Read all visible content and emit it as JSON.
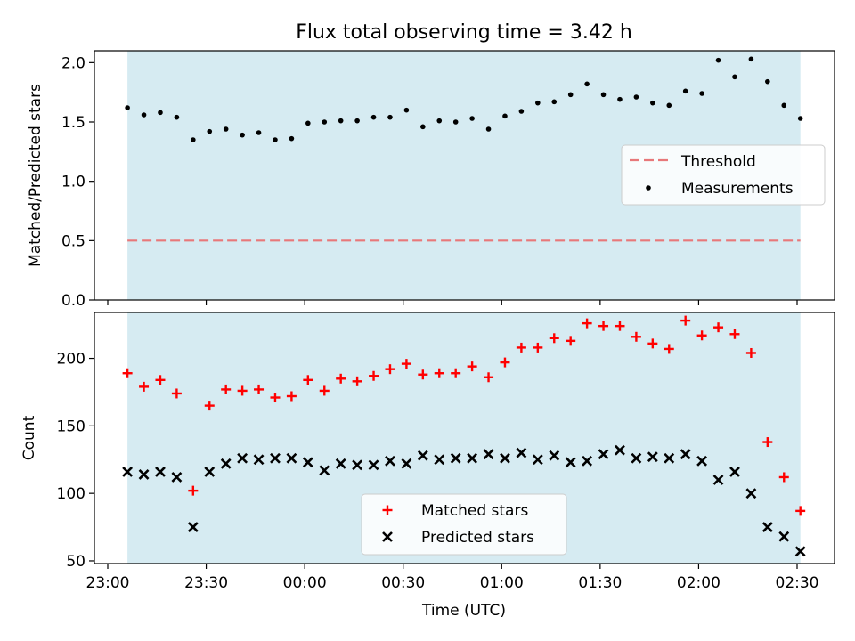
{
  "title": "Flux total observing time = 3.42 h",
  "colors": {
    "shade": "#add8e6",
    "threshold": "#e8787a",
    "matched": "#ff0000",
    "predicted": "#000000",
    "measurement": "#000000"
  },
  "chart_data": [
    {
      "type": "scatter",
      "ylabel": "Matched/Predicted stars",
      "xlim": [
        "23:00",
        "02:30"
      ],
      "ylim": [
        0.0,
        2.1
      ],
      "yticks": [
        "0.0",
        "0.5",
        "1.0",
        "1.5",
        "2.0"
      ],
      "shaded_interval": [
        "23:06",
        "02:31"
      ],
      "threshold": {
        "name": "Threshold",
        "value": 0.5
      },
      "legend": {
        "position": "center-right",
        "entries": [
          "Threshold",
          "Measurements"
        ]
      },
      "series": [
        {
          "name": "Measurements",
          "x": [
            "23:06",
            "23:11",
            "23:16",
            "23:21",
            "23:26",
            "23:31",
            "23:36",
            "23:41",
            "23:46",
            "23:51",
            "23:56",
            "00:01",
            "00:06",
            "00:11",
            "00:16",
            "00:21",
            "00:26",
            "00:31",
            "00:36",
            "00:41",
            "00:46",
            "00:51",
            "00:56",
            "01:01",
            "01:06",
            "01:11",
            "01:16",
            "01:21",
            "01:26",
            "01:31",
            "01:36",
            "01:41",
            "01:46",
            "01:51",
            "01:56",
            "02:01",
            "02:06",
            "02:11",
            "02:16",
            "02:21",
            "02:26",
            "02:31"
          ],
          "values": [
            1.62,
            1.56,
            1.58,
            1.54,
            1.35,
            1.42,
            1.44,
            1.39,
            1.41,
            1.35,
            1.36,
            1.49,
            1.5,
            1.51,
            1.51,
            1.54,
            1.54,
            1.6,
            1.46,
            1.51,
            1.5,
            1.53,
            1.44,
            1.55,
            1.59,
            1.66,
            1.67,
            1.73,
            1.82,
            1.73,
            1.69,
            1.71,
            1.66,
            1.64,
            1.76,
            1.74,
            2.02,
            1.88,
            2.03,
            1.84,
            1.64,
            1.53
          ]
        }
      ]
    },
    {
      "type": "scatter",
      "ylabel": "Count",
      "xlabel": "Time (UTC)",
      "ylim": [
        48,
        234
      ],
      "yticks": [
        "50",
        "100",
        "150",
        "200"
      ],
      "xticks": [
        "23:00",
        "23:30",
        "00:00",
        "00:30",
        "01:00",
        "01:30",
        "02:00",
        "02:30"
      ],
      "legend": {
        "position": "lower-center",
        "entries": [
          "Matched stars",
          "Predicted stars"
        ]
      },
      "series": [
        {
          "name": "Matched stars",
          "marker": "+",
          "x": [
            "23:06",
            "23:11",
            "23:16",
            "23:21",
            "23:26",
            "23:31",
            "23:36",
            "23:41",
            "23:46",
            "23:51",
            "23:56",
            "00:01",
            "00:06",
            "00:11",
            "00:16",
            "00:21",
            "00:26",
            "00:31",
            "00:36",
            "00:41",
            "00:46",
            "00:51",
            "00:56",
            "01:01",
            "01:06",
            "01:11",
            "01:16",
            "01:21",
            "01:26",
            "01:31",
            "01:36",
            "01:41",
            "01:46",
            "01:51",
            "01:56",
            "02:01",
            "02:06",
            "02:11",
            "02:16",
            "02:21",
            "02:26",
            "02:31"
          ],
          "values": [
            189,
            179,
            184,
            174,
            102,
            165,
            177,
            176,
            177,
            171,
            172,
            184,
            176,
            185,
            183,
            187,
            192,
            196,
            188,
            189,
            189,
            194,
            186,
            197,
            208,
            208,
            215,
            213,
            226,
            224,
            224,
            216,
            211,
            207,
            228,
            217,
            223,
            218,
            204,
            138,
            112,
            87
          ]
        },
        {
          "name": "Predicted stars",
          "marker": "x",
          "x": [
            "23:06",
            "23:11",
            "23:16",
            "23:21",
            "23:26",
            "23:31",
            "23:36",
            "23:41",
            "23:46",
            "23:51",
            "23:56",
            "00:01",
            "00:06",
            "00:11",
            "00:16",
            "00:21",
            "00:26",
            "00:31",
            "00:36",
            "00:41",
            "00:46",
            "00:51",
            "00:56",
            "01:01",
            "01:06",
            "01:11",
            "01:16",
            "01:21",
            "01:26",
            "01:31",
            "01:36",
            "01:41",
            "01:46",
            "01:51",
            "01:56",
            "02:01",
            "02:06",
            "02:11",
            "02:16",
            "02:21",
            "02:26",
            "02:31"
          ],
          "values": [
            116,
            114,
            116,
            112,
            75,
            116,
            122,
            126,
            125,
            126,
            126,
            123,
            117,
            122,
            121,
            121,
            124,
            122,
            128,
            125,
            126,
            126,
            129,
            126,
            130,
            125,
            128,
            123,
            124,
            129,
            132,
            126,
            127,
            126,
            129,
            124,
            110,
            116,
            100,
            75,
            68,
            57
          ]
        }
      ]
    }
  ]
}
